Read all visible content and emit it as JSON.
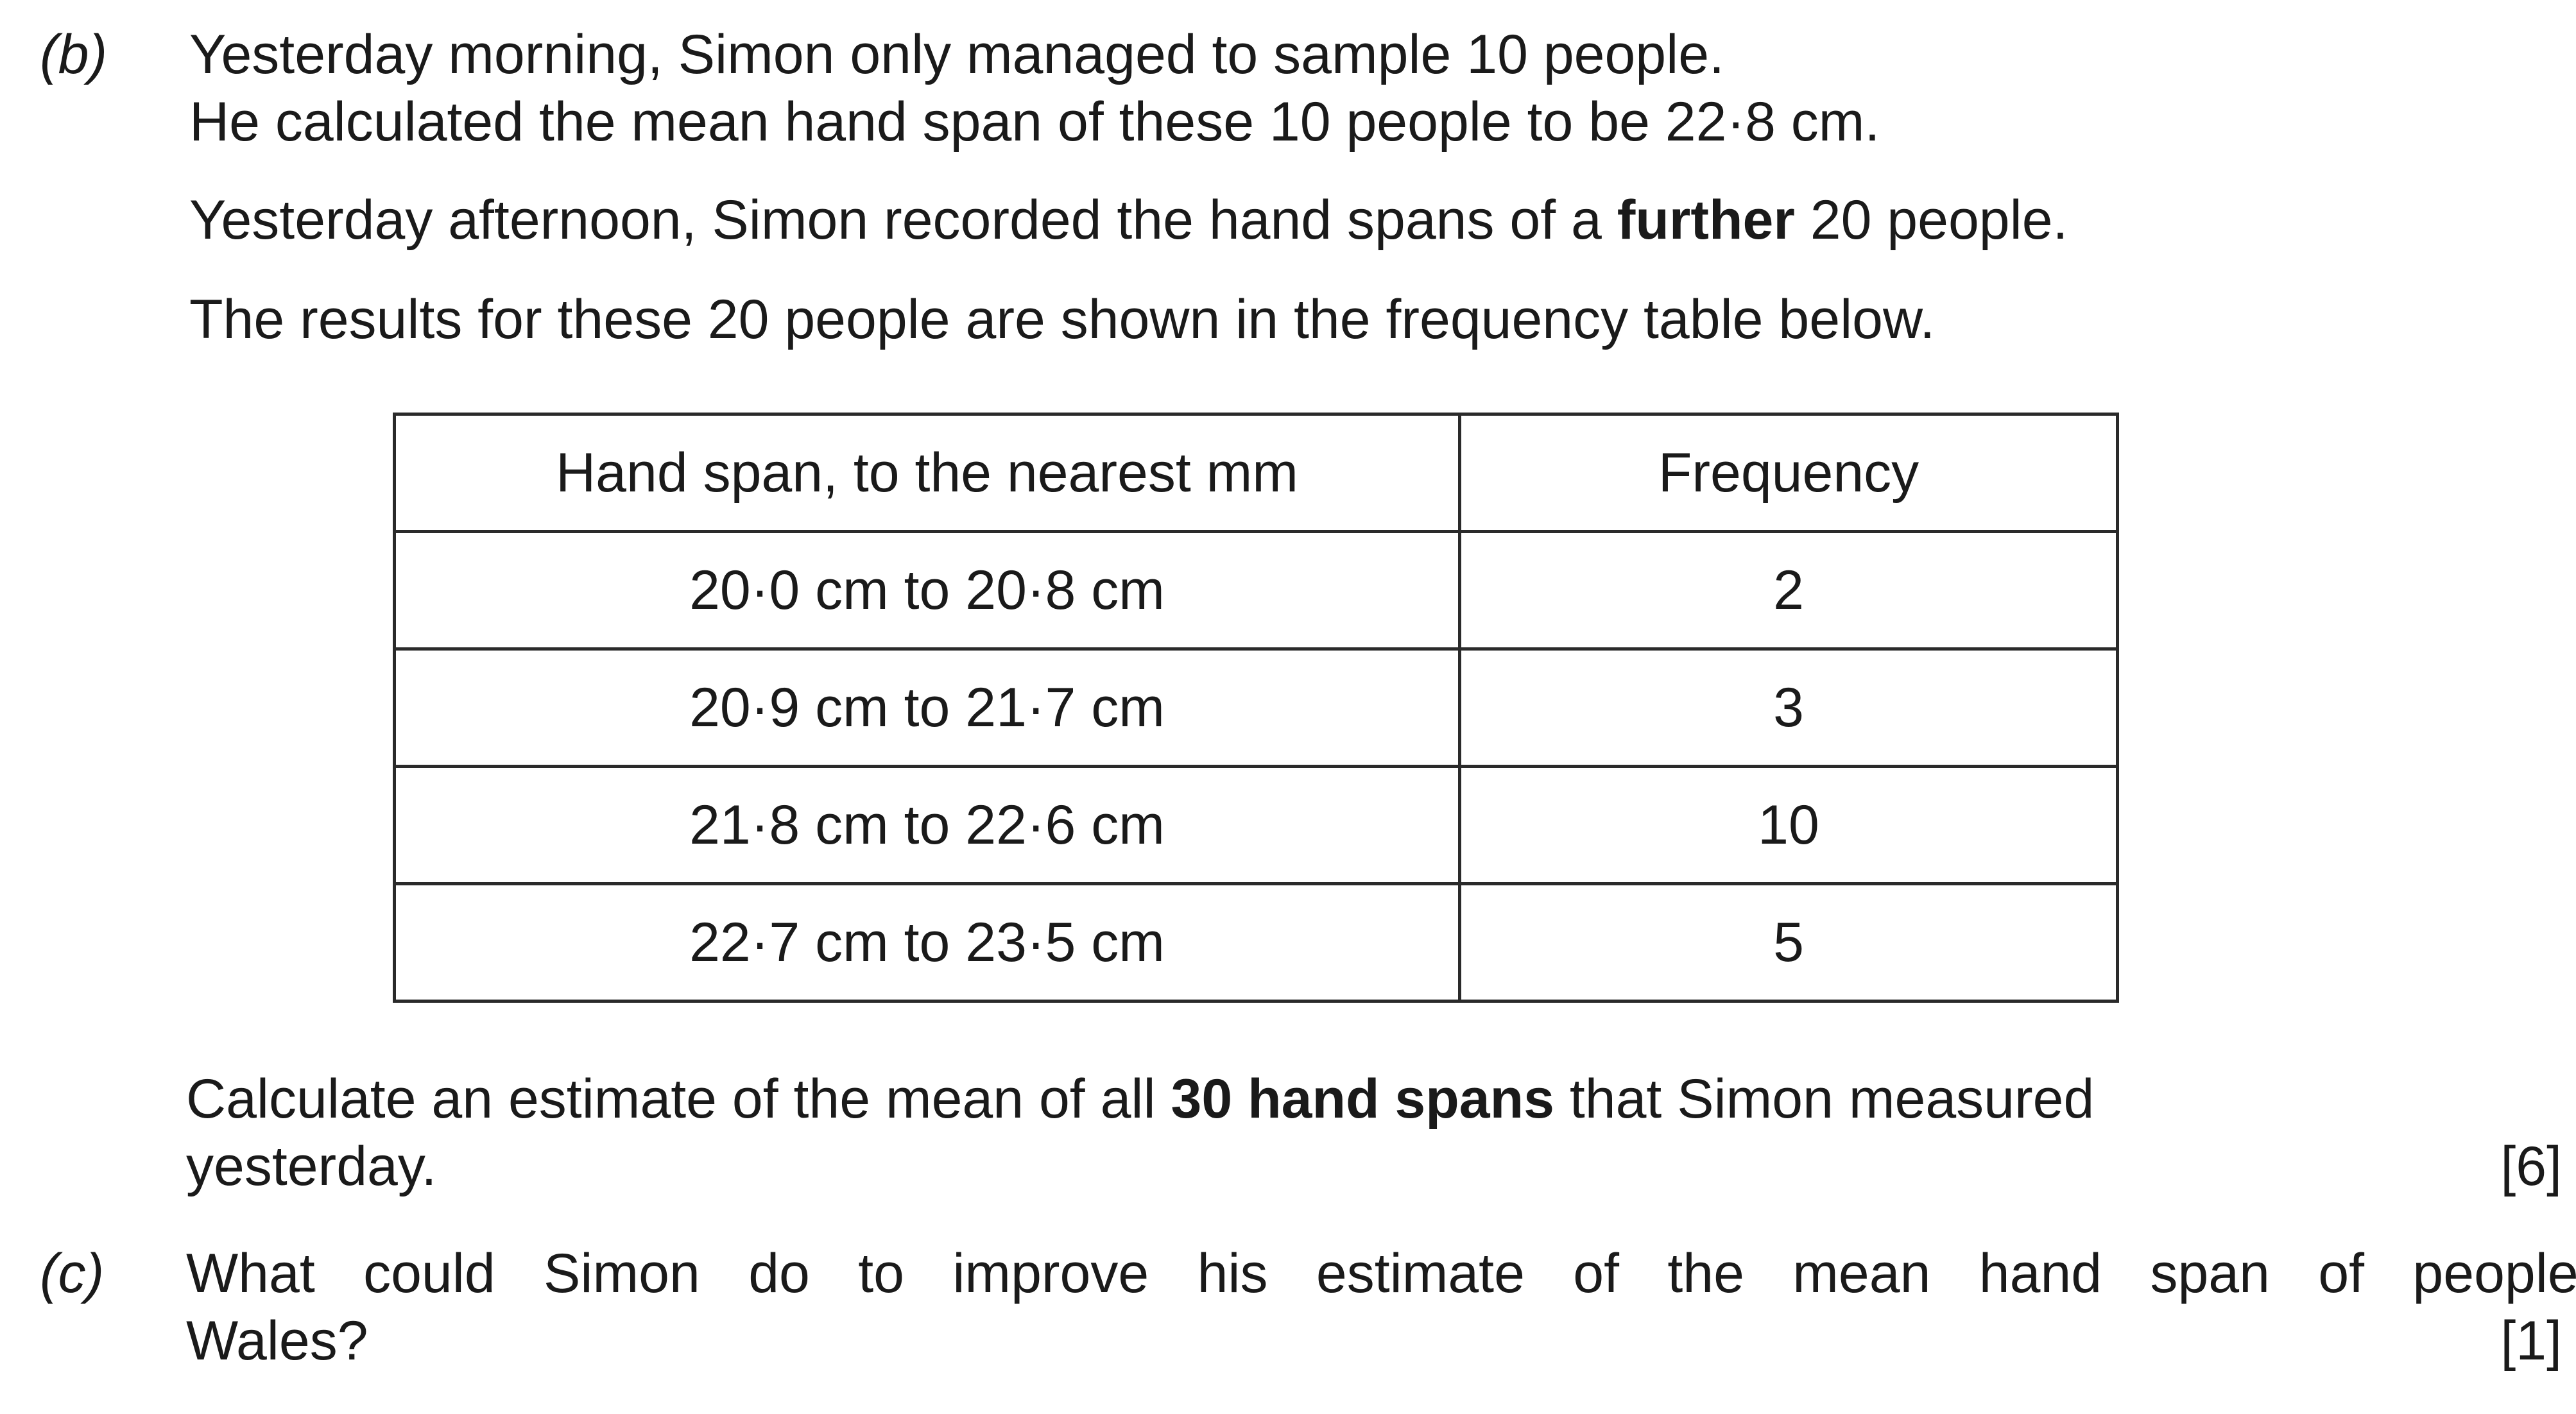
{
  "part_b": {
    "label": "(b)",
    "lines": [
      "Yesterday morning, Simon only managed to sample 10 people.",
      "He calculated the mean hand span of these 10 people to be 22·8 cm."
    ],
    "afternoon": {
      "before": "Yesterday afternoon, Simon recorded the hand spans of a ",
      "bold": "further",
      "after": " 20 people."
    },
    "table_intro": "The results for these 20 people are shown in the frequency table below.",
    "table": {
      "headers": [
        "Hand span, to the nearest mm",
        "Frequency"
      ],
      "rows": [
        [
          "20·0 cm to 20·8 cm",
          "2"
        ],
        [
          "20·9 cm to 21·7 cm",
          "3"
        ],
        [
          "21·8 cm to 22·6 cm",
          "10"
        ],
        [
          "22·7 cm to 23·5 cm",
          "5"
        ]
      ]
    },
    "question": {
      "before": "Calculate an estimate of the mean of all ",
      "bold": "30 hand spans",
      "after": " that Simon measured",
      "line2": "yesterday."
    },
    "marks": "[6]"
  },
  "part_c": {
    "label": "(c)",
    "line1": "What could Simon do to improve his estimate of the mean hand span of people in",
    "line2": "Wales?",
    "marks": "[1]"
  }
}
